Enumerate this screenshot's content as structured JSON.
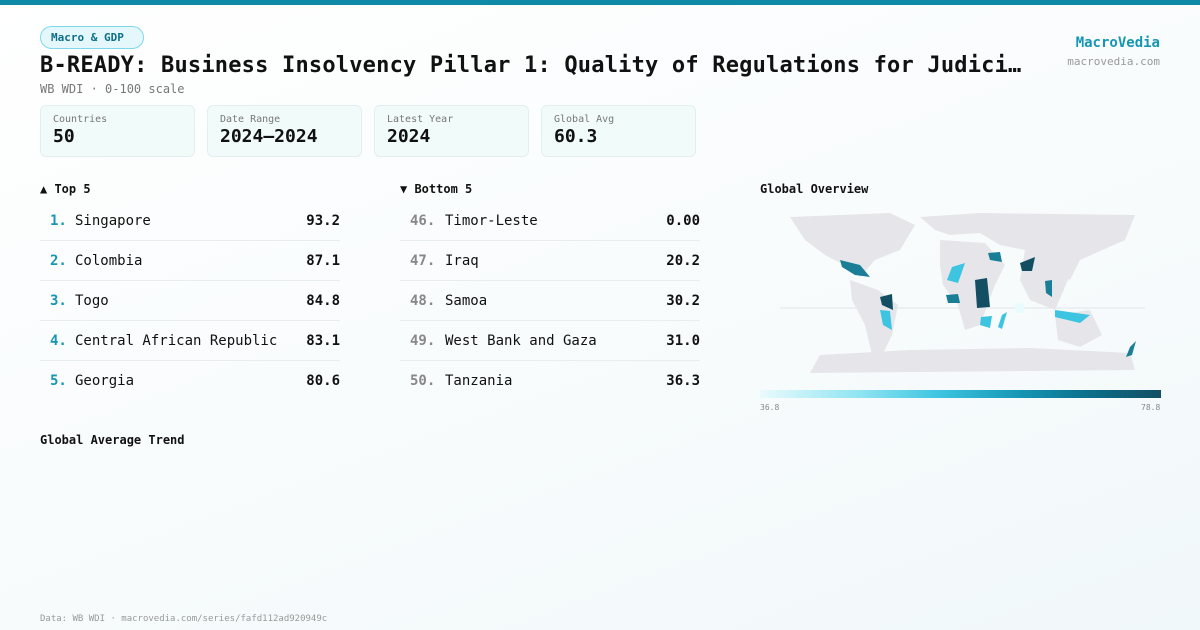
{
  "category_badge": "Macro & GDP",
  "title": "B-READY: Business Insolvency Pillar 1: Quality of Regulations for Judici…",
  "subtitle": "WB WDI · 0-100 scale",
  "brand": {
    "name": "MacroVedia",
    "url": "macrovedia.com"
  },
  "stats": [
    {
      "label": "Countries",
      "value": "50"
    },
    {
      "label": "Date Range",
      "value": "2024–2024"
    },
    {
      "label": "Latest Year",
      "value": "2024"
    },
    {
      "label": "Global Avg",
      "value": "60.3"
    }
  ],
  "top5": {
    "heading": "▲ Top 5",
    "items": [
      {
        "rank": "1.",
        "name": "Singapore",
        "value": "93.2"
      },
      {
        "rank": "2.",
        "name": "Colombia",
        "value": "87.1"
      },
      {
        "rank": "3.",
        "name": "Togo",
        "value": "84.8"
      },
      {
        "rank": "4.",
        "name": "Central African Republic",
        "value": "83.1"
      },
      {
        "rank": "5.",
        "name": "Georgia",
        "value": "80.6"
      }
    ]
  },
  "bottom5": {
    "heading": "▼ Bottom 5",
    "items": [
      {
        "rank": "46.",
        "name": "Timor-Leste",
        "value": "0.00"
      },
      {
        "rank": "47.",
        "name": "Iraq",
        "value": "20.2"
      },
      {
        "rank": "48.",
        "name": "Samoa",
        "value": "30.2"
      },
      {
        "rank": "49.",
        "name": "West Bank and Gaza",
        "value": "31.0"
      },
      {
        "rank": "50.",
        "name": "Tanzania",
        "value": "36.3"
      }
    ]
  },
  "map": {
    "heading": "Global Overview",
    "legend_min": "36.8",
    "legend_max": "78.8",
    "colors": {
      "land": "#e6e6ea",
      "low": "#eafbfd",
      "high": "#134e63"
    }
  },
  "trend": {
    "heading": "Global Average Trend"
  },
  "footer": "Data: WB WDI · macrovedia.com/series/fafd112ad920949c",
  "colors": {
    "accent": "#1596b4",
    "topbar": "#0e8aa6"
  }
}
